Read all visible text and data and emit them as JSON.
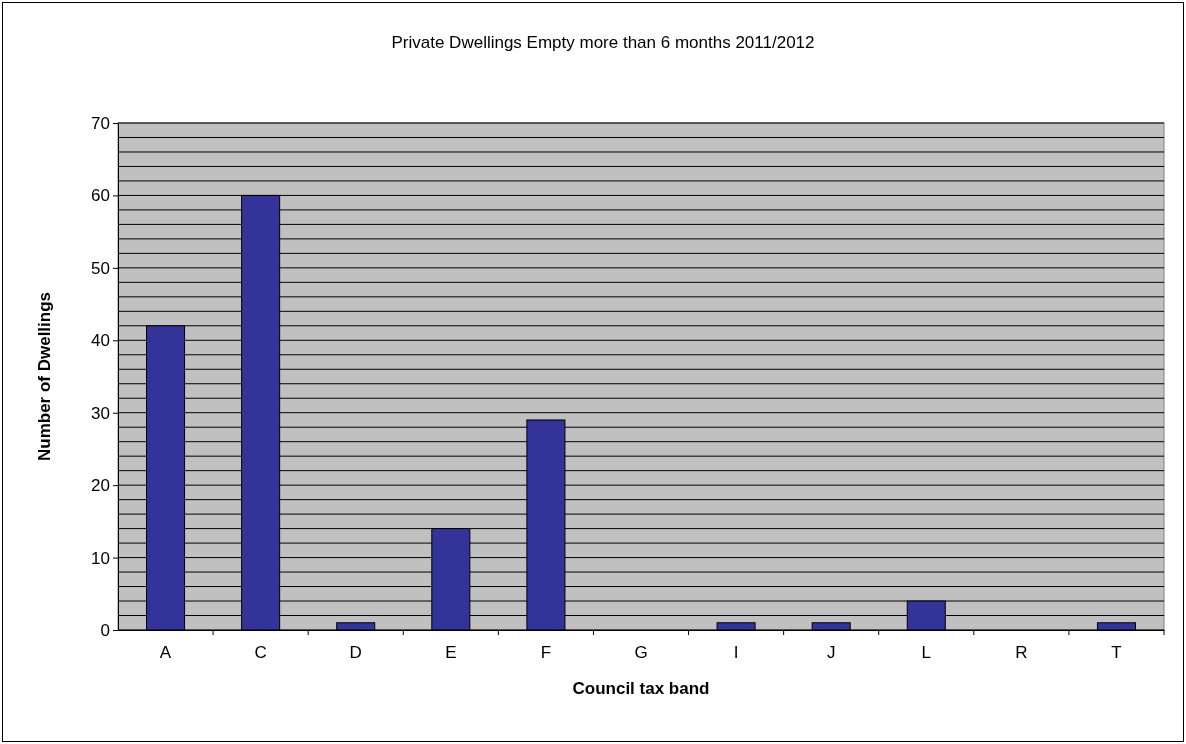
{
  "chart_data": {
    "type": "bar",
    "title": "Private Dwellings Empty more than 6 months 2011/2012",
    "xlabel": "Council tax band",
    "ylabel": "Number of Dwellings",
    "categories": [
      "A",
      "C",
      "D",
      "E",
      "F",
      "G",
      "I",
      "J",
      "L",
      "R",
      "T"
    ],
    "values": [
      42,
      60,
      1,
      14,
      29,
      0,
      1,
      1,
      4,
      0,
      1
    ],
    "color": "#333399",
    "ylim": [
      0,
      70
    ],
    "yticks": [
      0,
      {
        "value": 2,
        "label": null
      },
      {
        "value": 4,
        "label": null
      },
      {
        "value": 6,
        "label": null
      },
      {
        "value": 8,
        "label": null
      },
      10,
      {
        "value": 12,
        "label": null
      },
      {
        "value": 14,
        "label": null
      },
      {
        "value": 16,
        "label": null
      },
      {
        "value": 18,
        "label": null
      },
      20,
      {
        "value": 22,
        "label": null
      },
      {
        "value": 24,
        "label": null
      },
      {
        "value": 26,
        "label": null
      },
      {
        "value": 28,
        "label": null
      },
      30,
      {
        "value": 32,
        "label": null
      },
      {
        "value": 34,
        "label": null
      },
      {
        "value": 36,
        "label": null
      },
      {
        "value": 38,
        "label": null
      },
      40,
      {
        "value": 42,
        "label": null
      },
      {
        "value": 44,
        "label": null
      },
      {
        "value": 46,
        "label": null
      },
      {
        "value": 48,
        "label": null
      },
      50,
      {
        "value": 52,
        "label": null
      },
      {
        "value": 54,
        "label": null
      },
      {
        "value": 56,
        "label": null
      },
      {
        "value": 58,
        "label": null
      },
      60,
      {
        "value": 62,
        "label": null
      },
      {
        "value": 64,
        "label": null
      },
      {
        "value": 66,
        "label": null
      },
      {
        "value": 68,
        "label": null
      },
      70
    ],
    "grid": true
  }
}
